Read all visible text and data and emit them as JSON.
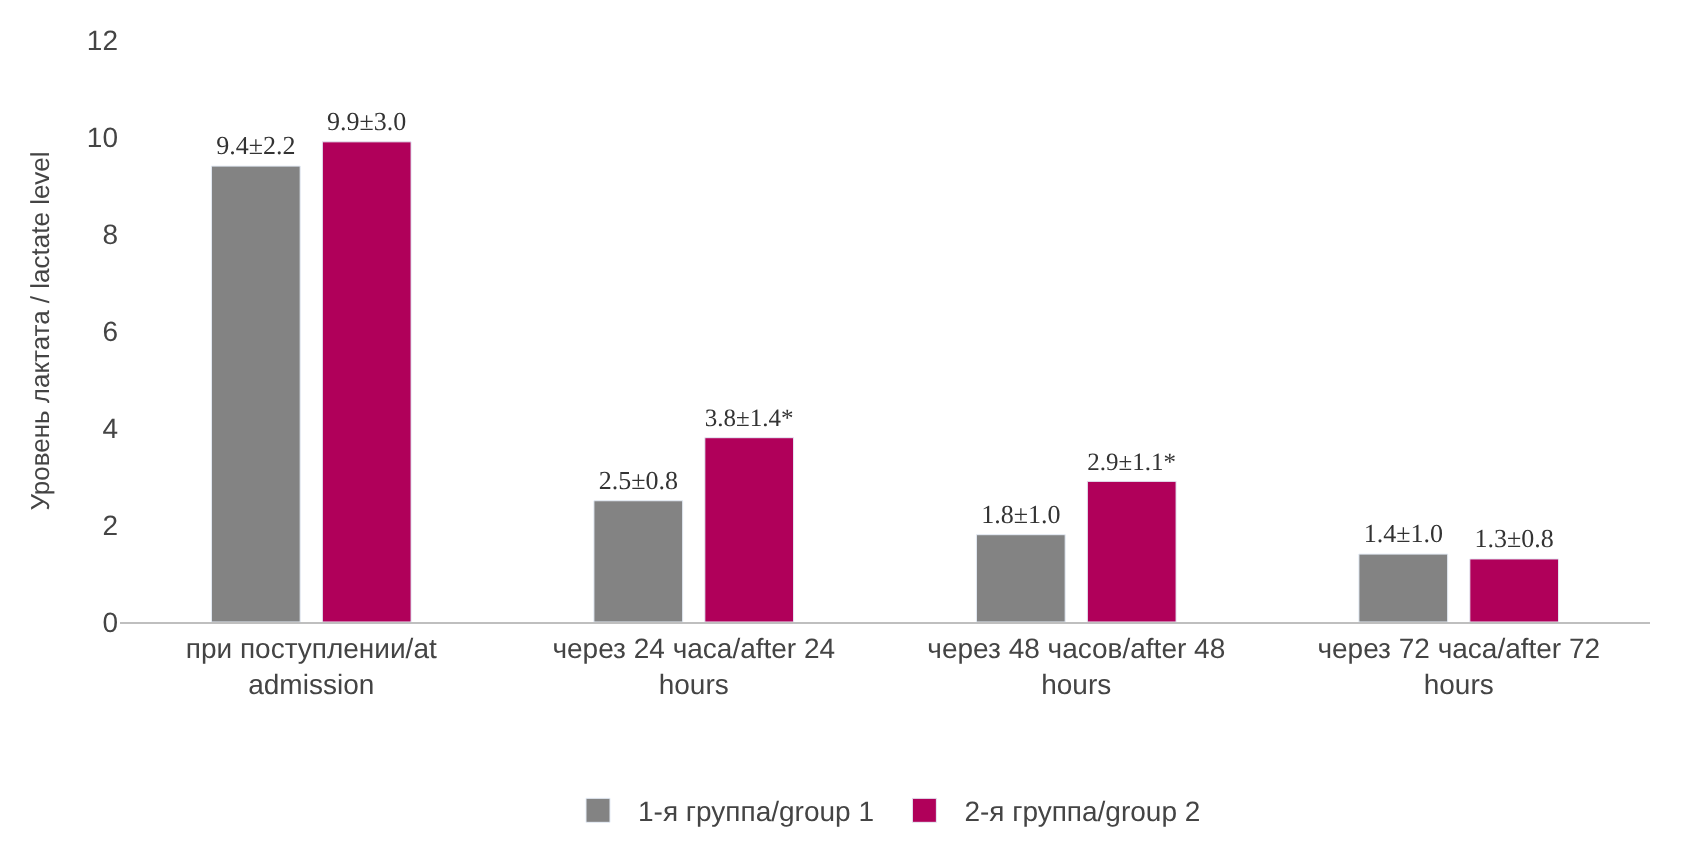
{
  "chart_data": {
    "type": "bar",
    "ylabel": "Уровень лактата / lactate level",
    "categories": [
      "при поступлении/at admission",
      "через 24 часа/after 24 hours",
      "через 48 часов/after 48 hours",
      "через 72 часа/after 72 hours"
    ],
    "series": [
      {
        "name": "1-я группа/group 1",
        "color": "#838383",
        "values": [
          9.4,
          2.5,
          1.8,
          1.4
        ],
        "value_labels": [
          "9.4±2.2",
          "2.5±0.8",
          "1.8±1.0",
          "1.4±1.0"
        ]
      },
      {
        "name": "2-я группа/group 2",
        "color": "#b0005a",
        "values": [
          9.9,
          3.8,
          2.9,
          1.3
        ],
        "value_labels": [
          "9.9±3.0",
          "3.8±1.4*",
          "2.9±1.1*",
          "1.3±0.8"
        ]
      }
    ],
    "ylim": [
      0,
      12
    ],
    "yticks": [
      0,
      2,
      4,
      6,
      8,
      10,
      12
    ],
    "legend": "bottom"
  }
}
